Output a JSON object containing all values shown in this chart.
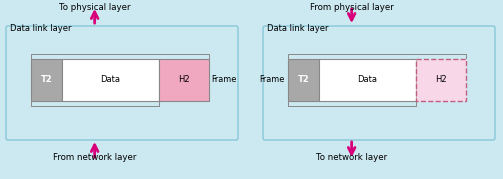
{
  "bg_color": "#cce8f0",
  "panel_edge": "#88c8d8",
  "box_edge": "#888888",
  "t2_fill": "#a8a8a8",
  "data_fill": "#ffffff",
  "h2_left_fill": "#f0a8c0",
  "h2_right_fill": "#f8d8e8",
  "arrow_color": "#d8007a",
  "text_color": "#000000",
  "bracket_color": "#888888",
  "figw": 5.03,
  "figh": 1.79,
  "labels": {
    "left_top": "From network layer",
    "left_bot_label": "Data link layer",
    "left_bot_arrow": "To physical layer",
    "right_top": "To network layer",
    "right_bot_label": "Data link layer",
    "right_bot_arrow": "From physical layer"
  }
}
